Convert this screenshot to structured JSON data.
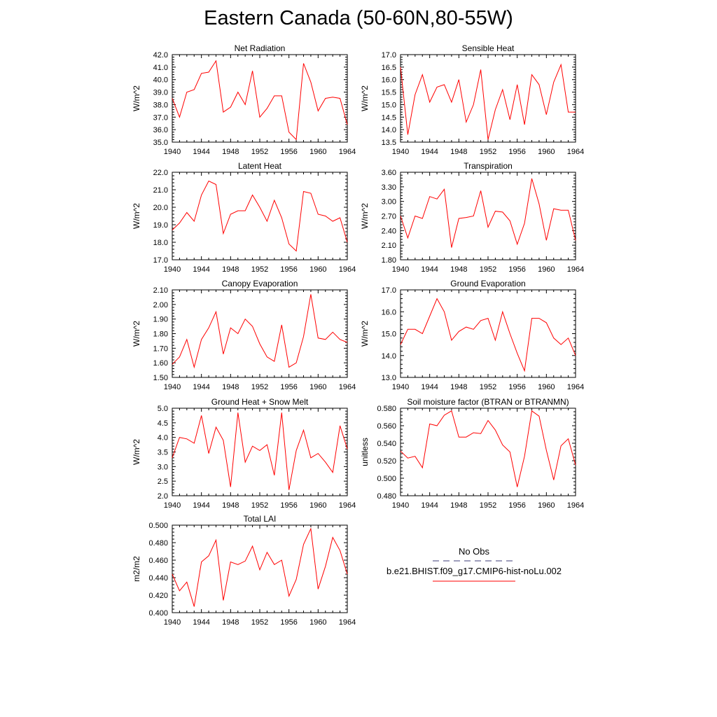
{
  "title": "Eastern Canada (50-60N,80-55W)",
  "colors": {
    "model_line": "#ff0000",
    "obs_line": "#3c3c78",
    "axis": "#000000"
  },
  "legend": {
    "obs_label": "No Obs",
    "model_label": "b.e21.BHIST.f09_g17.CMIP6-hist-noLu.002"
  },
  "chart_data": [
    {
      "type": "line",
      "title": "Net Radiation",
      "ylabel": "W/m^2",
      "xlim": [
        1940,
        1964
      ],
      "ylim": [
        35.0,
        42.0
      ],
      "xticks": [
        "1940",
        "1944",
        "1948",
        "1952",
        "1956",
        "1960",
        "1964"
      ],
      "yticks": [
        "35.0",
        "36.0",
        "37.0",
        "38.0",
        "39.0",
        "40.0",
        "41.0",
        "42.0"
      ],
      "x": [
        1940,
        1941,
        1942,
        1943,
        1944,
        1945,
        1946,
        1947,
        1948,
        1949,
        1950,
        1951,
        1952,
        1953,
        1954,
        1955,
        1956,
        1957,
        1958,
        1959,
        1960,
        1961,
        1962,
        1963,
        1964
      ],
      "series": [
        {
          "values": [
            38.5,
            37.0,
            39.0,
            39.2,
            40.5,
            40.6,
            41.5,
            37.4,
            37.8,
            39.0,
            38.0,
            40.7,
            37.0,
            37.7,
            38.7,
            38.7,
            35.8,
            35.2,
            41.3,
            39.8,
            37.5,
            38.5,
            38.6,
            38.5,
            36.4
          ]
        }
      ]
    },
    {
      "type": "line",
      "title": "Sensible Heat",
      "ylabel": "W/m^2",
      "xlim": [
        1940,
        1964
      ],
      "ylim": [
        13.5,
        17.0
      ],
      "xticks": [
        "1940",
        "1944",
        "1948",
        "1952",
        "1956",
        "1960",
        "1964"
      ],
      "yticks": [
        "13.5",
        "14.0",
        "14.5",
        "15.0",
        "15.5",
        "16.0",
        "16.5",
        "17.0"
      ],
      "x": [
        1940,
        1941,
        1942,
        1943,
        1944,
        1945,
        1946,
        1947,
        1948,
        1949,
        1950,
        1951,
        1952,
        1953,
        1954,
        1955,
        1956,
        1957,
        1958,
        1959,
        1960,
        1961,
        1962,
        1963,
        1964
      ],
      "series": [
        {
          "values": [
            16.5,
            13.8,
            15.4,
            16.2,
            15.1,
            15.7,
            15.8,
            15.1,
            16.0,
            14.3,
            15.0,
            16.4,
            13.6,
            14.8,
            15.6,
            14.4,
            15.8,
            14.2,
            16.2,
            15.8,
            14.6,
            15.9,
            16.6,
            14.7,
            14.7
          ]
        }
      ]
    },
    {
      "type": "line",
      "title": "Latent Heat",
      "ylabel": "W/m^2",
      "xlim": [
        1940,
        1964
      ],
      "ylim": [
        17.0,
        22.0
      ],
      "xticks": [
        "1940",
        "1944",
        "1948",
        "1952",
        "1956",
        "1960",
        "1964"
      ],
      "yticks": [
        "17.0",
        "18.0",
        "19.0",
        "20.0",
        "21.0",
        "22.0"
      ],
      "x": [
        1940,
        1941,
        1942,
        1943,
        1944,
        1945,
        1946,
        1947,
        1948,
        1949,
        1950,
        1951,
        1952,
        1953,
        1954,
        1955,
        1956,
        1957,
        1958,
        1959,
        1960,
        1961,
        1962,
        1963,
        1964
      ],
      "series": [
        {
          "values": [
            18.7,
            19.1,
            19.7,
            19.2,
            20.7,
            21.5,
            21.3,
            18.5,
            19.6,
            19.8,
            19.8,
            20.7,
            20.0,
            19.2,
            20.4,
            19.4,
            17.9,
            17.5,
            20.9,
            20.8,
            19.6,
            19.5,
            19.2,
            19.4,
            18.0
          ]
        }
      ]
    },
    {
      "type": "line",
      "title": "Transpiration",
      "ylabel": "W/m^2",
      "xlim": [
        1940,
        1964
      ],
      "ylim": [
        1.8,
        3.6
      ],
      "xticks": [
        "1940",
        "1944",
        "1948",
        "1952",
        "1956",
        "1960",
        "1964"
      ],
      "yticks": [
        "1.80",
        "2.10",
        "2.40",
        "2.70",
        "3.00",
        "3.30",
        "3.60"
      ],
      "x": [
        1940,
        1941,
        1942,
        1943,
        1944,
        1945,
        1946,
        1947,
        1948,
        1949,
        1950,
        1951,
        1952,
        1953,
        1954,
        1955,
        1956,
        1957,
        1958,
        1959,
        1960,
        1961,
        1962,
        1963,
        1964
      ],
      "series": [
        {
          "values": [
            2.7,
            2.25,
            2.7,
            2.65,
            3.1,
            3.05,
            3.25,
            2.05,
            2.65,
            2.67,
            2.7,
            3.22,
            2.47,
            2.8,
            2.78,
            2.6,
            2.12,
            2.55,
            3.47,
            2.95,
            2.2,
            2.85,
            2.82,
            2.82,
            2.2
          ]
        }
      ]
    },
    {
      "type": "line",
      "title": "Canopy Evaporation",
      "ylabel": "W/m^2",
      "xlim": [
        1940,
        1964
      ],
      "ylim": [
        1.5,
        2.1
      ],
      "xticks": [
        "1940",
        "1944",
        "1948",
        "1952",
        "1956",
        "1960",
        "1964"
      ],
      "yticks": [
        "1.50",
        "1.60",
        "1.70",
        "1.80",
        "1.90",
        "2.00",
        "2.10"
      ],
      "x": [
        1940,
        1941,
        1942,
        1943,
        1944,
        1945,
        1946,
        1947,
        1948,
        1949,
        1950,
        1951,
        1952,
        1953,
        1954,
        1955,
        1956,
        1957,
        1958,
        1959,
        1960,
        1961,
        1962,
        1963,
        1964
      ],
      "series": [
        {
          "values": [
            1.59,
            1.64,
            1.76,
            1.57,
            1.76,
            1.84,
            1.95,
            1.66,
            1.84,
            1.8,
            1.9,
            1.85,
            1.73,
            1.64,
            1.61,
            1.86,
            1.57,
            1.6,
            1.78,
            2.07,
            1.77,
            1.76,
            1.81,
            1.76,
            1.74
          ]
        }
      ]
    },
    {
      "type": "line",
      "title": "Ground Evaporation",
      "ylabel": "W/m^2",
      "xlim": [
        1940,
        1964
      ],
      "ylim": [
        13.0,
        17.0
      ],
      "xticks": [
        "1940",
        "1944",
        "1948",
        "1952",
        "1956",
        "1960",
        "1964"
      ],
      "yticks": [
        "13.0",
        "14.0",
        "15.0",
        "16.0",
        "17.0"
      ],
      "x": [
        1940,
        1941,
        1942,
        1943,
        1944,
        1945,
        1946,
        1947,
        1948,
        1949,
        1950,
        1951,
        1952,
        1953,
        1954,
        1955,
        1956,
        1957,
        1958,
        1959,
        1960,
        1961,
        1962,
        1963,
        1964
      ],
      "series": [
        {
          "values": [
            14.5,
            15.2,
            15.2,
            15.0,
            15.8,
            16.6,
            16.0,
            14.7,
            15.1,
            15.3,
            15.2,
            15.6,
            15.7,
            14.7,
            16.0,
            15.0,
            14.1,
            13.3,
            15.7,
            15.7,
            15.5,
            14.8,
            14.5,
            14.8,
            14.0
          ]
        }
      ]
    },
    {
      "type": "line",
      "title": "Ground Heat + Snow Melt",
      "ylabel": "W/m^2",
      "xlim": [
        1940,
        1964
      ],
      "ylim": [
        2.0,
        5.0
      ],
      "xticks": [
        "1940",
        "1944",
        "1948",
        "1952",
        "1956",
        "1960",
        "1964"
      ],
      "yticks": [
        "2.0",
        "2.5",
        "3.0",
        "3.5",
        "4.0",
        "4.5",
        "5.0"
      ],
      "x": [
        1940,
        1941,
        1942,
        1943,
        1944,
        1945,
        1946,
        1947,
        1948,
        1949,
        1950,
        1951,
        1952,
        1953,
        1954,
        1955,
        1956,
        1957,
        1958,
        1959,
        1960,
        1961,
        1962,
        1963,
        1964
      ],
      "series": [
        {
          "values": [
            3.3,
            4.0,
            3.95,
            3.8,
            4.75,
            3.45,
            4.35,
            3.9,
            2.3,
            4.85,
            3.15,
            3.7,
            3.55,
            3.75,
            2.7,
            4.85,
            2.2,
            3.55,
            4.25,
            3.3,
            3.45,
            3.15,
            2.8,
            4.4,
            3.6
          ]
        }
      ]
    },
    {
      "type": "line",
      "title": "Soil moisture factor (BTRAN or BTRANMN)",
      "ylabel": "unitless",
      "xlim": [
        1940,
        1964
      ],
      "ylim": [
        0.48,
        0.58
      ],
      "xticks": [
        "1940",
        "1944",
        "1948",
        "1952",
        "1956",
        "1960",
        "1964"
      ],
      "yticks": [
        "0.480",
        "0.500",
        "0.520",
        "0.540",
        "0.560",
        "0.580"
      ],
      "x": [
        1940,
        1941,
        1942,
        1943,
        1944,
        1945,
        1946,
        1947,
        1948,
        1949,
        1950,
        1951,
        1952,
        1953,
        1954,
        1955,
        1956,
        1957,
        1958,
        1959,
        1960,
        1961,
        1962,
        1963,
        1964
      ],
      "series": [
        {
          "values": [
            0.531,
            0.523,
            0.525,
            0.512,
            0.562,
            0.56,
            0.572,
            0.577,
            0.547,
            0.547,
            0.552,
            0.551,
            0.566,
            0.555,
            0.538,
            0.53,
            0.49,
            0.525,
            0.577,
            0.571,
            0.532,
            0.498,
            0.537,
            0.545,
            0.515
          ]
        }
      ]
    },
    {
      "type": "line",
      "title": "Total LAI",
      "ylabel": "m2/m2",
      "xlim": [
        1940,
        1964
      ],
      "ylim": [
        0.4,
        0.5
      ],
      "xticks": [
        "1940",
        "1944",
        "1948",
        "1952",
        "1956",
        "1960",
        "1964"
      ],
      "yticks": [
        "0.400",
        "0.420",
        "0.440",
        "0.460",
        "0.480",
        "0.500"
      ],
      "x": [
        1940,
        1941,
        1942,
        1943,
        1944,
        1945,
        1946,
        1947,
        1948,
        1949,
        1950,
        1951,
        1952,
        1953,
        1954,
        1955,
        1956,
        1957,
        1958,
        1959,
        1960,
        1961,
        1962,
        1963,
        1964
      ],
      "series": [
        {
          "values": [
            0.444,
            0.425,
            0.435,
            0.407,
            0.458,
            0.465,
            0.483,
            0.414,
            0.458,
            0.455,
            0.459,
            0.476,
            0.449,
            0.469,
            0.455,
            0.46,
            0.419,
            0.438,
            0.478,
            0.496,
            0.427,
            0.453,
            0.486,
            0.471,
            0.444
          ]
        }
      ]
    }
  ]
}
